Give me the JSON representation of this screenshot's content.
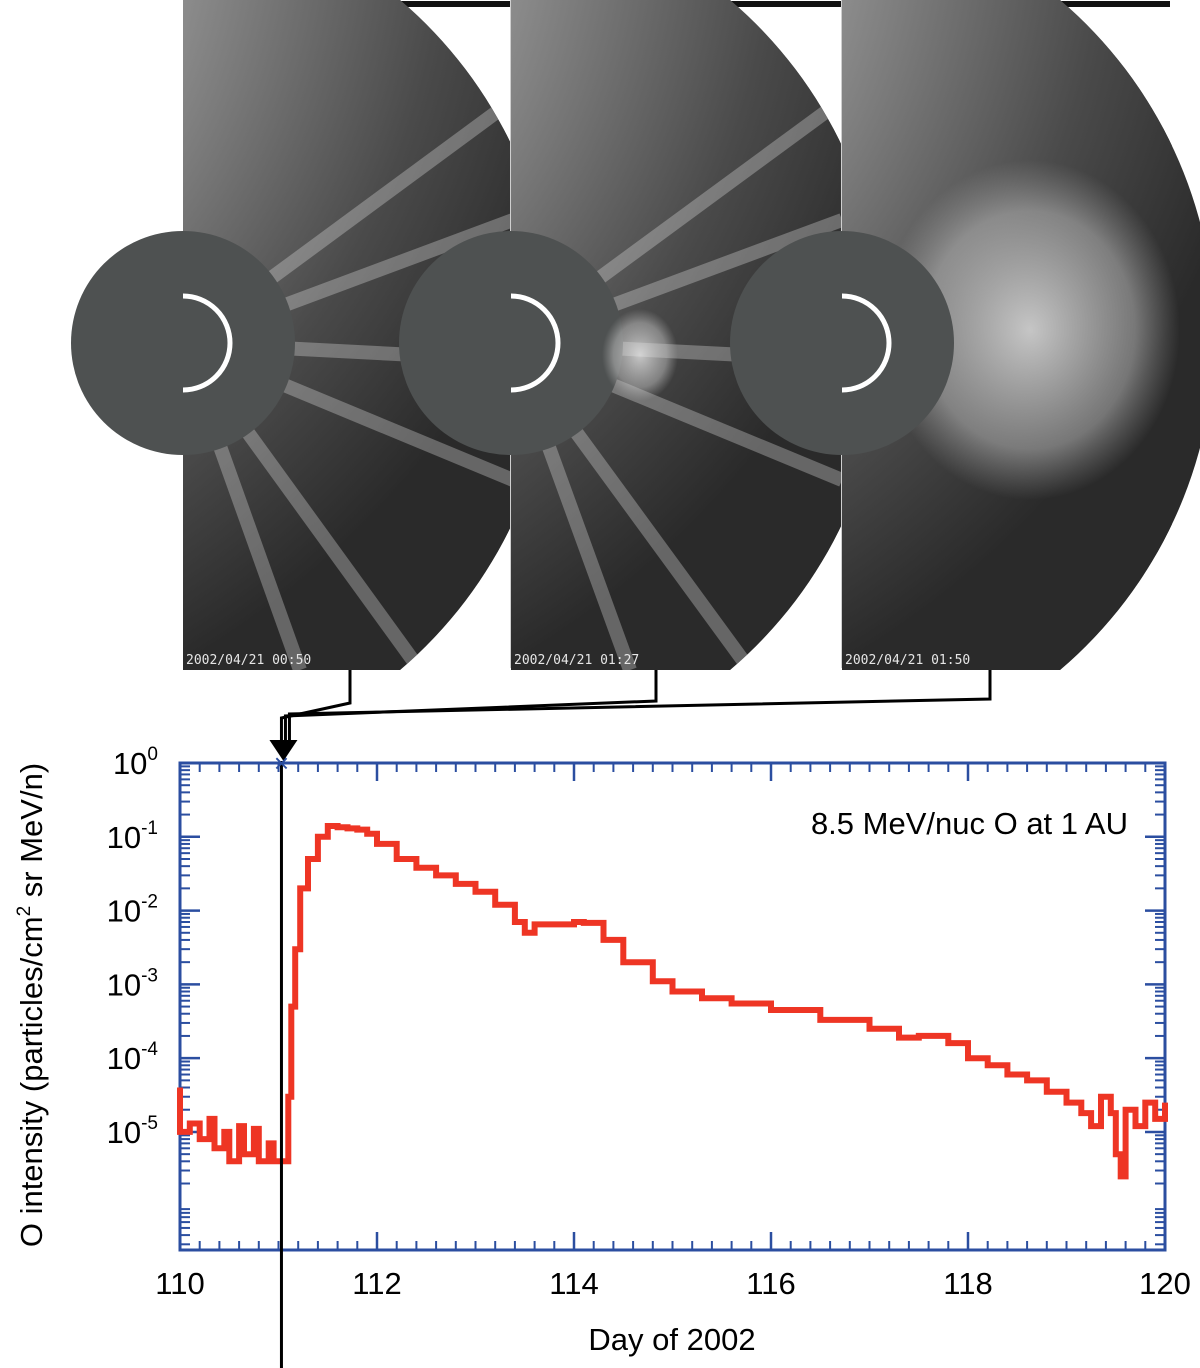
{
  "coronagraph": {
    "frames": [
      {
        "timestamp": "2002/04/21 00:50",
        "day": 111.035
      },
      {
        "timestamp": "2002/04/21 01:27",
        "day": 111.06
      },
      {
        "timestamp": "2002/04/21 01:50",
        "day": 111.076
      }
    ]
  },
  "chart_data": {
    "type": "line",
    "annotation": "8.5 MeV/nuc O at 1 AU",
    "xlabel": "Day of 2002",
    "ylabel_parts": [
      "O intensity (particles/cm",
      "2",
      " sr MeV/n)"
    ],
    "xlim": [
      110,
      120
    ],
    "ylim_log10": [
      -6.6,
      0
    ],
    "yscale": "log",
    "x_ticks": [
      "110",
      "112",
      "114",
      "116",
      "118",
      "120"
    ],
    "y_ticks": [
      {
        "base": "10",
        "exp": "0"
      },
      {
        "base": "10",
        "exp": "-1"
      },
      {
        "base": "10",
        "exp": "-2"
      },
      {
        "base": "10",
        "exp": "-3"
      },
      {
        "base": "10",
        "exp": "-4"
      },
      {
        "base": "10",
        "exp": "-5"
      }
    ],
    "event_marker": {
      "x": 111.03,
      "symbol": "×"
    },
    "series": [
      {
        "color": "#ee3524",
        "points": [
          [
            109.95,
            4e-05
          ],
          [
            110.0,
            1e-05
          ],
          [
            110.1,
            1.3e-05
          ],
          [
            110.2,
            8e-06
          ],
          [
            110.3,
            1.5e-05
          ],
          [
            110.35,
            6e-06
          ],
          [
            110.45,
            1e-05
          ],
          [
            110.5,
            4e-06
          ],
          [
            110.6,
            1.2e-05
          ],
          [
            110.65,
            5e-06
          ],
          [
            110.75,
            1.1e-05
          ],
          [
            110.8,
            4e-06
          ],
          [
            110.9,
            7e-06
          ],
          [
            110.95,
            4e-06
          ],
          [
            111.05,
            4e-06
          ],
          [
            111.1,
            3e-05
          ],
          [
            111.13,
            0.0005
          ],
          [
            111.17,
            0.003
          ],
          [
            111.22,
            0.02
          ],
          [
            111.3,
            0.05
          ],
          [
            111.4,
            0.1
          ],
          [
            111.5,
            0.14
          ],
          [
            111.6,
            0.135
          ],
          [
            111.7,
            0.13
          ],
          [
            111.8,
            0.125
          ],
          [
            111.9,
            0.11
          ],
          [
            112.0,
            0.08
          ],
          [
            112.2,
            0.05
          ],
          [
            112.4,
            0.038
          ],
          [
            112.6,
            0.03
          ],
          [
            112.8,
            0.023
          ],
          [
            113.0,
            0.018
          ],
          [
            113.2,
            0.012
          ],
          [
            113.4,
            0.007
          ],
          [
            113.5,
            0.005
          ],
          [
            113.6,
            0.0065
          ],
          [
            113.8,
            0.0065
          ],
          [
            114.0,
            0.007
          ],
          [
            114.1,
            0.0068
          ],
          [
            114.3,
            0.004
          ],
          [
            114.5,
            0.002
          ],
          [
            114.8,
            0.0011
          ],
          [
            115.0,
            0.0008
          ],
          [
            115.3,
            0.00065
          ],
          [
            115.6,
            0.00055
          ],
          [
            116.0,
            0.00045
          ],
          [
            116.5,
            0.00033
          ],
          [
            117.0,
            0.00025
          ],
          [
            117.3,
            0.00019
          ],
          [
            117.5,
            0.0002
          ],
          [
            117.8,
            0.00016
          ],
          [
            118.0,
            0.0001
          ],
          [
            118.2,
            8e-05
          ],
          [
            118.4,
            6e-05
          ],
          [
            118.6,
            5e-05
          ],
          [
            118.8,
            3.5e-05
          ],
          [
            119.0,
            2.5e-05
          ],
          [
            119.15,
            1.8e-05
          ],
          [
            119.25,
            1.2e-05
          ],
          [
            119.35,
            3e-05
          ],
          [
            119.45,
            1.8e-05
          ],
          [
            119.5,
            5e-06
          ],
          [
            119.55,
            2.5e-06
          ],
          [
            119.6,
            2e-05
          ],
          [
            119.7,
            1.2e-05
          ],
          [
            119.8,
            2.5e-05
          ],
          [
            119.9,
            1.5e-05
          ],
          [
            120.0,
            2.5e-05
          ]
        ]
      }
    ]
  }
}
